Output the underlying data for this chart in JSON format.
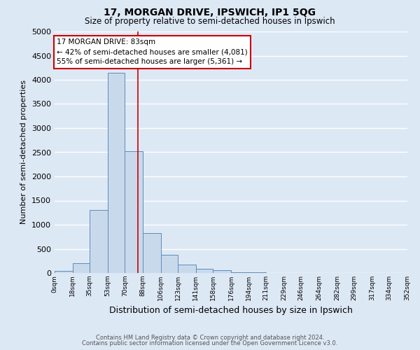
{
  "title": "17, MORGAN DRIVE, IPSWICH, IP1 5QG",
  "subtitle": "Size of property relative to semi-detached houses in Ipswich",
  "xlabel": "Distribution of semi-detached houses by size in Ipswich",
  "ylabel": "Number of semi-detached properties",
  "bar_color": "#c9d9ec",
  "bar_edge_color": "#5b8db8",
  "background_color": "#dde8f5",
  "grid_color": "#ffffff",
  "bin_edges": [
    0,
    18,
    35,
    53,
    70,
    88,
    106,
    123,
    141,
    158,
    176,
    194,
    211,
    229,
    246,
    264,
    282,
    299,
    317,
    334,
    352
  ],
  "bin_labels": [
    "0sqm",
    "18sqm",
    "35sqm",
    "53sqm",
    "70sqm",
    "88sqm",
    "106sqm",
    "123sqm",
    "141sqm",
    "158sqm",
    "176sqm",
    "194sqm",
    "211sqm",
    "229sqm",
    "246sqm",
    "264sqm",
    "282sqm",
    "299sqm",
    "317sqm",
    "334sqm",
    "352sqm"
  ],
  "bar_heights": [
    40,
    200,
    1300,
    4150,
    2520,
    820,
    380,
    175,
    90,
    60,
    20,
    10,
    5,
    3,
    2,
    1,
    1,
    0,
    0,
    0
  ],
  "property_line_x": 83,
  "property_line_color": "#cc0000",
  "annotation_line1": "17 MORGAN DRIVE: 83sqm",
  "annotation_line2": "← 42% of semi-detached houses are smaller (4,081)",
  "annotation_line3": "55% of semi-detached houses are larger (5,361) →",
  "annotation_box_color": "#ffffff",
  "annotation_box_edge": "#cc0000",
  "ylim_max": 5000,
  "xlim_max": 352,
  "yticks": [
    0,
    500,
    1000,
    1500,
    2000,
    2500,
    3000,
    3500,
    4000,
    4500,
    5000
  ],
  "footnote1": "Contains HM Land Registry data © Crown copyright and database right 2024.",
  "footnote2": "Contains public sector information licensed under the Open Government Licence v3.0."
}
